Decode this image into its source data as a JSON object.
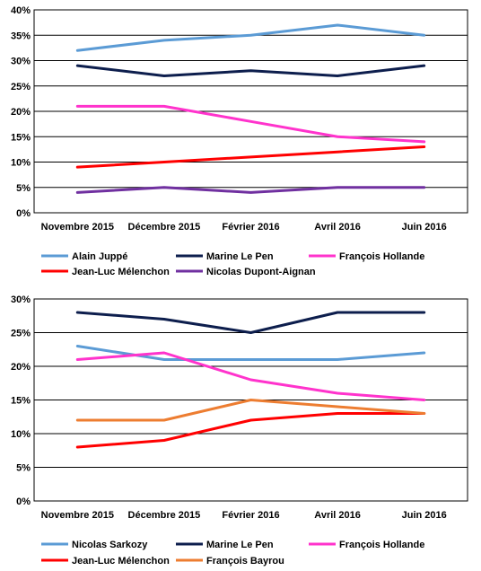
{
  "chart_data": [
    {
      "type": "line",
      "categories": [
        "Novembre 2015",
        "Décembre 2015",
        "Février 2016",
        "Avril 2016",
        "Juin 2016"
      ],
      "ylim": [
        0,
        40
      ],
      "yticks": [
        "0%",
        "5%",
        "10%",
        "15%",
        "20%",
        "25%",
        "30%",
        "35%",
        "40%"
      ],
      "grid": true,
      "legend_position": "bottom",
      "series": [
        {
          "name": "Alain Juppé",
          "color": "#5b9bd5",
          "values": [
            32,
            34,
            35,
            37,
            35
          ]
        },
        {
          "name": "Marine Le Pen",
          "color": "#0d1e4d",
          "values": [
            29,
            27,
            28,
            27,
            29
          ]
        },
        {
          "name": "François Hollande",
          "color": "#ff33cc",
          "values": [
            21,
            21,
            18,
            15,
            14
          ]
        },
        {
          "name": "Jean-Luc Mélenchon",
          "color": "#ff0000",
          "values": [
            9,
            10,
            11,
            12,
            13
          ]
        },
        {
          "name": "Nicolas Dupont-Aignan",
          "color": "#7030a0",
          "values": [
            4,
            5,
            4,
            5,
            5
          ]
        }
      ]
    },
    {
      "type": "line",
      "categories": [
        "Novembre 2015",
        "Décembre 2015",
        "Février 2016",
        "Avril 2016",
        "Juin 2016"
      ],
      "ylim": [
        0,
        30
      ],
      "yticks": [
        "0%",
        "5%",
        "10%",
        "15%",
        "20%",
        "25%",
        "30%"
      ],
      "grid": true,
      "legend_position": "bottom",
      "series": [
        {
          "name": "Nicolas Sarkozy",
          "color": "#5b9bd5",
          "values": [
            23,
            21,
            21,
            21,
            22
          ]
        },
        {
          "name": "Marine Le Pen",
          "color": "#0d1e4d",
          "values": [
            28,
            27,
            25,
            28,
            28
          ]
        },
        {
          "name": "François Hollande",
          "color": "#ff33cc",
          "values": [
            21,
            22,
            18,
            16,
            15
          ]
        },
        {
          "name": "Jean-Luc Mélenchon",
          "color": "#ff0000",
          "values": [
            8,
            9,
            12,
            13,
            13
          ]
        },
        {
          "name": "François Bayrou",
          "color": "#ed7d31",
          "values": [
            12,
            12,
            15,
            14,
            13
          ]
        }
      ]
    }
  ]
}
